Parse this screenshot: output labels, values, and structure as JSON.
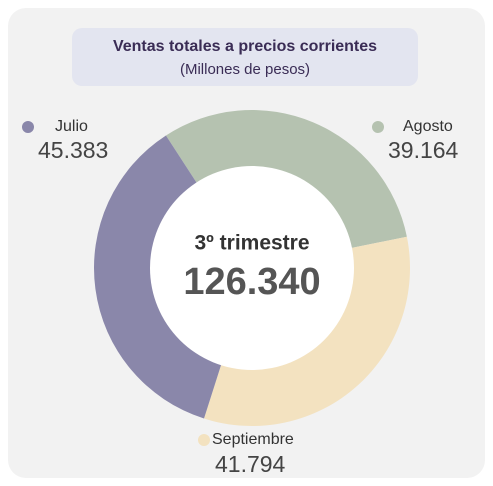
{
  "chart_data": {
    "type": "donut",
    "title": "Ventas totales a precios corrientes",
    "subtitle": "(Millones de pesos)",
    "center_title": "3º trimestre",
    "center_value": "126.340",
    "categories": [
      "Julio",
      "Agosto",
      "Septiembre"
    ],
    "values": [
      45383,
      39164,
      41794
    ],
    "value_labels": [
      "45.383",
      "39.164",
      "41.794"
    ],
    "colors": [
      "#8a87aa",
      "#b5c2b0",
      "#f3e2c0"
    ]
  }
}
